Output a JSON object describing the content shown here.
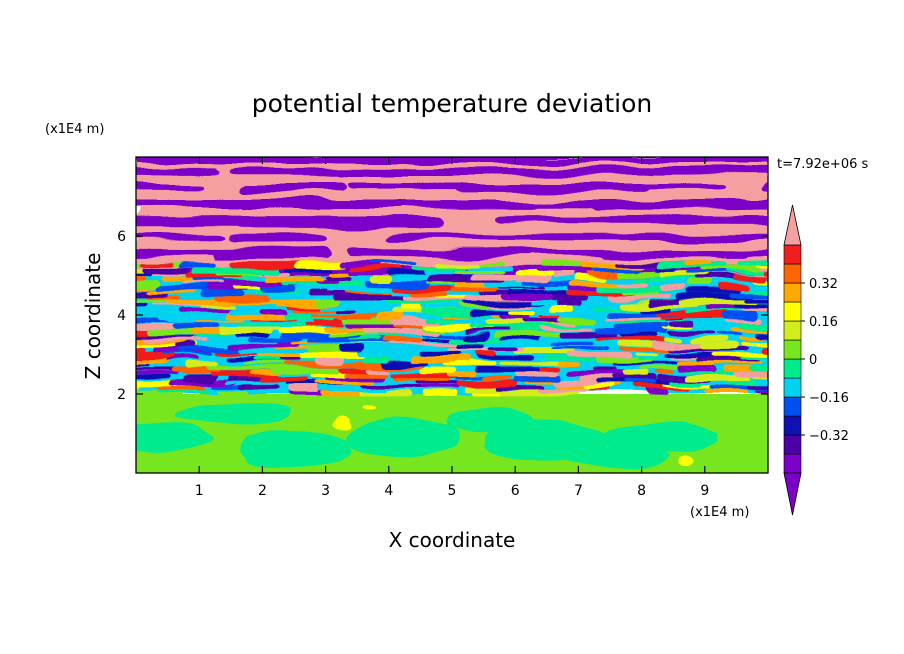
{
  "chart_data": {
    "type": "heatmap",
    "title": "potential temperature deviation",
    "xlabel": "X coordinate",
    "ylabel": "Z coordinate",
    "x_unit": "(x1E4 m)",
    "y_unit": "(x1E4 m)",
    "time_label": "t=7.92e+06 s",
    "xlim": [
      0,
      10
    ],
    "ylim": [
      0,
      8
    ],
    "x_ticks": [
      1,
      2,
      3,
      4,
      5,
      6,
      7,
      8,
      9
    ],
    "y_ticks": [
      2,
      4,
      6
    ],
    "colorbar": {
      "levels": [
        -0.48,
        -0.4,
        -0.32,
        -0.24,
        -0.16,
        -0.08,
        0,
        0.08,
        0.16,
        0.24,
        0.32,
        0.4,
        0.48
      ],
      "tick_labels": [
        "0.32",
        "0.16",
        "0",
        "−0.16",
        "−0.32"
      ],
      "tick_values": [
        0.32,
        0.16,
        0,
        -0.16,
        -0.32
      ],
      "colors": [
        "#7b00c8",
        "#4b00a8",
        "#1010b4",
        "#0050f0",
        "#00d2f0",
        "#00eb8c",
        "#78e61e",
        "#d2ec1e",
        "#ffff00",
        "#ffa800",
        "#ff6400",
        "#f01e1e",
        "#f5a0a0"
      ],
      "extends": [
        "min",
        "max"
      ]
    },
    "regions": [
      {
        "z_range": [
          0,
          2
        ],
        "description_value": "near 0, mostly light green (0 to 0.08) with small yellow patches"
      },
      {
        "z_range": [
          2,
          5
        ],
        "description_value": "turbulent mixed layer spanning full color range"
      },
      {
        "z_range": [
          5,
          8
        ],
        "description_value": "alternating bands of pink (>0.48) and purple (<-0.48)"
      }
    ]
  }
}
